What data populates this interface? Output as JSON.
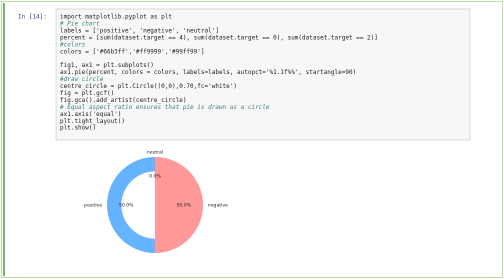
{
  "cell": {
    "prompt": "In [14]:",
    "code": [
      "import matplotlib.pyplot as plt",
      "# Pie chart",
      "labels = ['positive', 'negative', 'neutral']",
      "percent = [sum(dataset.target == 4), sum(dataset.target == 0), sum(dataset.target == 2)]",
      "#colors",
      "colors = ['#66b3ff','#ff9999','#99ff99']",
      "fig1, ax1 = plt.subplots()",
      "ax1.pie(percent, colors = colors, labels=labels, autopct='%1.1f%%', startangle=90)",
      "#draw circle",
      "centre_circle = plt.Circle((0,0),0.70,fc='white')",
      "fig = plt.gcf()",
      "fig.gca().add_artist(centre_circle)",
      "# Equal aspect ratio ensures that pie is drawn as a circle",
      "ax1.axis('equal')",
      "plt.tight_layout()",
      "plt.show()"
    ]
  },
  "chart_data": {
    "type": "pie",
    "categories": [
      "positive",
      "negative",
      "neutral"
    ],
    "values": [
      50,
      50,
      0
    ],
    "value_labels": [
      "50.0%",
      "50.0%",
      "0.0%"
    ],
    "colors": [
      "#66b3ff",
      "#ff9999",
      "#99ff99"
    ],
    "startangle": 90,
    "hole": 0.7
  }
}
